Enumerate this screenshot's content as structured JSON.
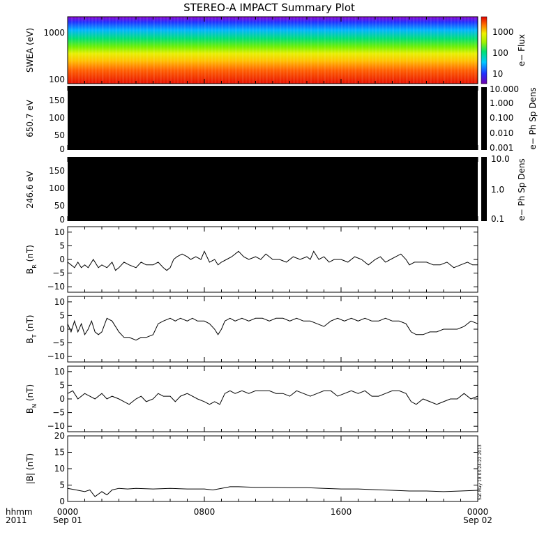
{
  "title": "STEREO-A IMPACT Summary Plot",
  "timestamp": "Sat May 18 03:24:22 2013",
  "x_axis": {
    "row1_label": "hhmm",
    "row2_label": "2011",
    "ticks": [
      {
        "hours": 0,
        "top": "0000",
        "bottom": "Sep 01"
      },
      {
        "hours": 8,
        "top": "0800",
        "bottom": ""
      },
      {
        "hours": 16,
        "top": "1600",
        "bottom": ""
      },
      {
        "hours": 24,
        "top": "0000",
        "bottom": "Sep 02"
      }
    ],
    "range_hours": [
      0,
      24
    ]
  },
  "colors": {
    "spectrogram": [
      "#8a00c8",
      "#2030ff",
      "#00c8ff",
      "#00e070",
      "#80f000",
      "#f0f000",
      "#ffb000",
      "#ff5000",
      "#e01000"
    ],
    "empty_panel": "#000000",
    "line": "#000000"
  },
  "chart_data": [
    {
      "id": "swea",
      "type": "heatmap",
      "ylabel": "SWEA (eV)",
      "ytick_labels": [
        "1000",
        "100"
      ],
      "yscale": "log",
      "ylim": [
        95,
        2200
      ],
      "colorbar": {
        "label": "e−  Flux",
        "scale": "log",
        "range": [
          3,
          6000
        ],
        "ticks": [
          "1000",
          "100",
          "10"
        ]
      },
      "energy_spectrum": [
        {
          "energy": 100,
          "flux": 3000
        },
        {
          "energy": 150,
          "flux": 1800
        },
        {
          "energy": 220,
          "flux": 700
        },
        {
          "energy": 300,
          "flux": 400
        },
        {
          "energy": 450,
          "flux": 100
        },
        {
          "energy": 700,
          "flux": 40
        },
        {
          "energy": 1000,
          "flux": 20
        },
        {
          "energy": 1500,
          "flux": 7
        },
        {
          "energy": 2000,
          "flux": 4
        }
      ]
    },
    {
      "id": "pad650",
      "type": "heatmap",
      "ylabel": "650.7 eV",
      "ytick_labels": [
        "150",
        "100",
        "50",
        "0"
      ],
      "ylim": [
        0,
        180
      ],
      "colorbar": {
        "label": "e−  Ph Sp Dens",
        "scale": "log",
        "range": [
          0.001,
          10
        ],
        "ticks": [
          "10.000",
          "1.000",
          "0.100",
          "0.010",
          "0.001"
        ]
      },
      "fill": "no data (all black)"
    },
    {
      "id": "pad246",
      "type": "heatmap",
      "ylabel": "246.6 eV",
      "ytick_labels": [
        "150",
        "100",
        "50",
        "0"
      ],
      "ylim": [
        0,
        180
      ],
      "colorbar": {
        "label": "e−  Ph Sp Dens",
        "scale": "log",
        "range": [
          0.1,
          10
        ],
        "ticks": [
          "10.0",
          "1.0",
          "0.1"
        ]
      },
      "fill": "no data (all black)"
    },
    {
      "id": "br",
      "type": "line",
      "ylabel": "B",
      "ylabel_sub": "R",
      "ylabel_unit": " (nT)",
      "ylim": [
        -12,
        12
      ],
      "ytick_labels": [
        "10",
        "5",
        "0",
        "−5",
        "−10"
      ],
      "series": [
        {
          "x": [
            0,
            0.2,
            0.4,
            0.6,
            0.8,
            1.0,
            1.2,
            1.5,
            1.8,
            2.0,
            2.3,
            2.6,
            2.8,
            3.0,
            3.3,
            3.6,
            4.0,
            4.3,
            4.6,
            5.0,
            5.3,
            5.6,
            5.8,
            6.0,
            6.2,
            6.4,
            6.7,
            7.0,
            7.2,
            7.5,
            7.8,
            8.0,
            8.3,
            8.6,
            8.8,
            9.0,
            9.3,
            9.6,
            10.0,
            10.3,
            10.6,
            11.0,
            11.3,
            11.6,
            12.0,
            12.4,
            12.8,
            13.2,
            13.6,
            14.0,
            14.2,
            14.4,
            14.7,
            15.0,
            15.3,
            15.6,
            16.0,
            16.4,
            16.8,
            17.2,
            17.6,
            18.0,
            18.3,
            18.6,
            18.9,
            19.2,
            19.5,
            19.8,
            20.0,
            20.3,
            20.6,
            21.0,
            21.4,
            21.8,
            22.2,
            22.6,
            23.0,
            23.4,
            23.7,
            24.0
          ],
          "y": [
            -1,
            -2,
            -3,
            -1,
            -3,
            -2,
            -3,
            0,
            -3,
            -2,
            -3,
            -1,
            -4,
            -3,
            -1,
            -2,
            -3,
            -1,
            -2,
            -2,
            -1,
            -3,
            -4,
            -3,
            0,
            1,
            2,
            1,
            0,
            1,
            0,
            3,
            -1,
            0,
            -2,
            -1,
            0,
            1,
            3,
            1,
            0,
            1,
            0,
            2,
            0,
            0,
            -1,
            1,
            0,
            1,
            0,
            3,
            0,
            1,
            -1,
            0,
            0,
            -1,
            1,
            0,
            -2,
            0,
            1,
            -1,
            0,
            1,
            2,
            0,
            -2,
            -1,
            -1,
            -1,
            -2,
            -2,
            -1,
            -3,
            -2,
            -1,
            -2,
            -2
          ]
        }
      ]
    },
    {
      "id": "bt",
      "type": "line",
      "ylabel": "B",
      "ylabel_sub": "T",
      "ylabel_unit": " (nT)",
      "ylim": [
        -12,
        12
      ],
      "ytick_labels": [
        "10",
        "5",
        "0",
        "−5",
        "−10"
      ],
      "series": [
        {
          "x": [
            0,
            0.2,
            0.4,
            0.6,
            0.8,
            1.0,
            1.2,
            1.4,
            1.6,
            1.8,
            2.0,
            2.3,
            2.6,
            3.0,
            3.3,
            3.6,
            4.0,
            4.3,
            4.6,
            5.0,
            5.3,
            5.6,
            6.0,
            6.3,
            6.6,
            7.0,
            7.3,
            7.6,
            8.0,
            8.3,
            8.6,
            8.8,
            9.0,
            9.2,
            9.5,
            9.8,
            10.2,
            10.6,
            11.0,
            11.4,
            11.8,
            12.2,
            12.6,
            13.0,
            13.4,
            13.8,
            14.2,
            14.6,
            15.0,
            15.4,
            15.8,
            16.2,
            16.6,
            17.0,
            17.4,
            17.8,
            18.2,
            18.6,
            19.0,
            19.4,
            19.8,
            20.1,
            20.4,
            20.8,
            21.2,
            21.6,
            22.0,
            22.4,
            22.8,
            23.2,
            23.6,
            24.0
          ],
          "y": [
            2,
            -1,
            3,
            -1,
            2,
            -2,
            0,
            3,
            -1,
            -2,
            -1,
            4,
            3,
            -1,
            -3,
            -3,
            -4,
            -3,
            -3,
            -2,
            2,
            3,
            4,
            3,
            4,
            3,
            4,
            3,
            3,
            2,
            0,
            -2,
            0,
            3,
            4,
            3,
            4,
            3,
            4,
            4,
            3,
            4,
            4,
            3,
            4,
            3,
            3,
            2,
            1,
            3,
            4,
            3,
            4,
            3,
            4,
            3,
            3,
            4,
            3,
            3,
            2,
            -1,
            -2,
            -2,
            -1,
            -1,
            0,
            0,
            0,
            1,
            3,
            2
          ]
        }
      ]
    },
    {
      "id": "bn",
      "type": "line",
      "ylabel": "B",
      "ylabel_sub": "N",
      "ylabel_unit": " (nT)",
      "ylim": [
        -12,
        12
      ],
      "ytick_labels": [
        "10",
        "5",
        "0",
        "−5",
        "−10"
      ],
      "series": [
        {
          "x": [
            0,
            0.3,
            0.6,
            1.0,
            1.3,
            1.6,
            2.0,
            2.3,
            2.6,
            3.0,
            3.3,
            3.6,
            4.0,
            4.3,
            4.6,
            5.0,
            5.3,
            5.6,
            6.0,
            6.3,
            6.6,
            7.0,
            7.3,
            7.6,
            8.0,
            8.3,
            8.6,
            8.9,
            9.2,
            9.5,
            9.8,
            10.2,
            10.6,
            11.0,
            11.4,
            11.8,
            12.2,
            12.6,
            13.0,
            13.4,
            13.8,
            14.2,
            14.6,
            15.0,
            15.4,
            15.8,
            16.2,
            16.6,
            17.0,
            17.4,
            17.8,
            18.2,
            18.6,
            19.0,
            19.4,
            19.8,
            20.1,
            20.4,
            20.8,
            21.2,
            21.6,
            22.0,
            22.4,
            22.8,
            23.2,
            23.6,
            24.0
          ],
          "y": [
            2,
            3,
            0,
            2,
            1,
            0,
            2,
            0,
            1,
            0,
            -1,
            -2,
            0,
            1,
            -1,
            0,
            2,
            1,
            1,
            -1,
            1,
            2,
            1,
            0,
            -1,
            -2,
            -1,
            -2,
            2,
            3,
            2,
            3,
            2,
            3,
            3,
            3,
            2,
            2,
            1,
            3,
            2,
            1,
            2,
            3,
            3,
            1,
            2,
            3,
            2,
            3,
            1,
            1,
            2,
            3,
            3,
            2,
            -1,
            -2,
            0,
            -1,
            -2,
            -1,
            0,
            0,
            2,
            0,
            1
          ]
        }
      ]
    },
    {
      "id": "bmag",
      "type": "line",
      "ylabel": "|B| (nT)",
      "ylim": [
        0,
        20
      ],
      "ytick_labels": [
        "20",
        "15",
        "10",
        "5",
        "0"
      ],
      "series": [
        {
          "x": [
            0,
            0.5,
            1.0,
            1.3,
            1.6,
            2.0,
            2.3,
            2.6,
            3.0,
            3.5,
            4.0,
            5.0,
            6.0,
            7.0,
            8.0,
            8.5,
            9.0,
            9.5,
            10.0,
            11.0,
            12.0,
            13.0,
            14.0,
            15.0,
            16.0,
            17.0,
            18.0,
            19.0,
            20.0,
            21.0,
            22.0,
            23.0,
            24.0
          ],
          "y": [
            4,
            3.5,
            3,
            3.5,
            1.5,
            3,
            2,
            3.5,
            4,
            3.8,
            4,
            3.8,
            4,
            3.8,
            3.8,
            3.5,
            4,
            4.5,
            4.5,
            4.3,
            4.3,
            4.2,
            4.2,
            4,
            3.8,
            3.8,
            3.6,
            3.4,
            3.2,
            3.2,
            3.0,
            3.2,
            3.4
          ]
        }
      ]
    }
  ]
}
